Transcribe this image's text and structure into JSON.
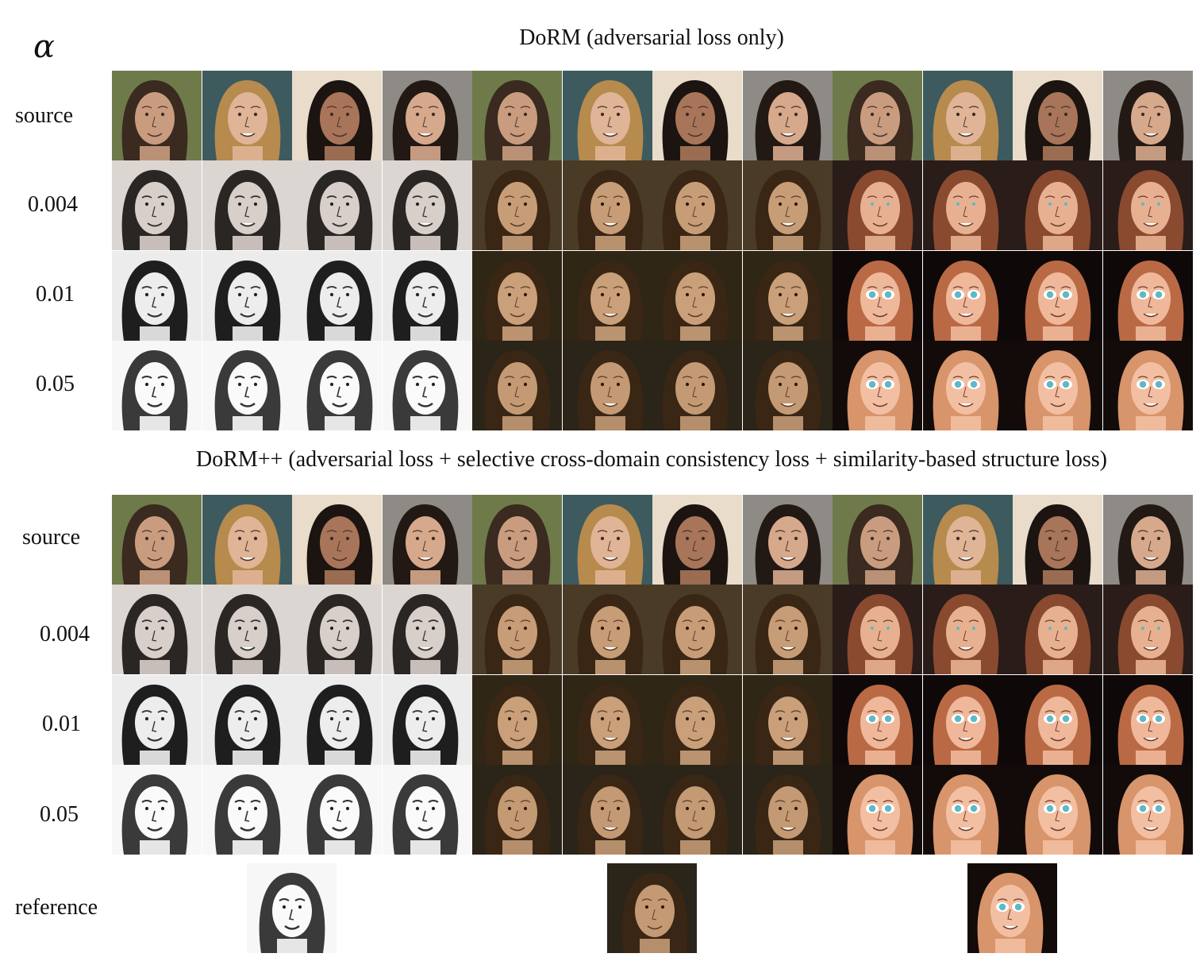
{
  "figure": {
    "alpha_symbol": "α",
    "sections": [
      {
        "title": "DoRM (adversarial loss only)",
        "rows": [
          {
            "label": "source",
            "kind": "source"
          },
          {
            "label": "0.004",
            "kind": "level1"
          },
          {
            "label": "0.01",
            "kind": "level2"
          },
          {
            "label": "0.05",
            "kind": "level3"
          }
        ]
      },
      {
        "title": "DoRM++ (adversarial loss + selective cross-domain consistency loss + similarity-based structure loss)",
        "rows": [
          {
            "label": "source",
            "kind": "source"
          },
          {
            "label": "0.004",
            "kind": "level1"
          },
          {
            "label": "0.01",
            "kind": "level2"
          },
          {
            "label": "0.05",
            "kind": "level3"
          }
        ]
      }
    ],
    "domains": [
      "sketch",
      "painting",
      "cartoon"
    ],
    "reference_label": "reference",
    "reference_images": [
      "sketch",
      "painting",
      "cartoon"
    ]
  },
  "colors": {
    "sketch_bg": "#f2f2f2",
    "painting_bg": "#2b2418",
    "cartoon_bg": "#130b0a",
    "photo_bg_1": "#6f7a4a",
    "photo_bg_2": "#3d5a5e",
    "photo_bg_3": "#e9dccb",
    "photo_bg_4": "#8e8a86"
  }
}
